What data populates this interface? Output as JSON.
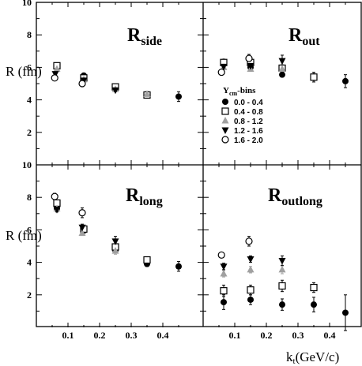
{
  "chart_data": {
    "type": "scatter",
    "x_axis_label": {
      "main": "k",
      "sub": "t",
      "rest": "(GeV/c)"
    },
    "y_axis_label": "R (fm)",
    "x_ticks": [
      0.1,
      0.2,
      0.3,
      0.4
    ],
    "x_tick_labels": [
      "0.1",
      "0.2",
      "0.3",
      "0.4"
    ],
    "y_ticks": [
      2,
      4,
      6,
      8,
      10
    ],
    "y_tick_labels": [
      "2",
      "4",
      "6",
      "8",
      "10"
    ],
    "xlim": [
      0,
      0.5
    ],
    "ylim": [
      0,
      10
    ],
    "legend": {
      "title": {
        "main": "Y",
        "sub": "cm",
        "rest": "-bins"
      },
      "placement": "top-right panel, lower left",
      "entries": [
        {
          "label": "0.0 - 0.4",
          "marker": "filled-circle"
        },
        {
          "label": "0.4 - 0.8",
          "marker": "open-square"
        },
        {
          "label": "0.8 - 1.2",
          "marker": "gray-triangle-up"
        },
        {
          "label": "1.2 - 1.6",
          "marker": "filled-triangle-down"
        },
        {
          "label": "1.6 - 2.0",
          "marker": "open-circle"
        }
      ]
    },
    "panels": [
      {
        "title": {
          "main": "R",
          "sub": "side"
        },
        "position": "top-left",
        "series": [
          {
            "points": [
              [
                0.065,
                6.1
              ],
              [
                0.15,
                5.5
              ],
              [
                0.25,
                4.7
              ],
              [
                0.35,
                4.35
              ],
              [
                0.45,
                4.2
              ]
            ],
            "yerr": [
              0.1,
              0.1,
              0.1,
              0.1,
              0.3
            ]
          },
          {
            "points": [
              [
                0.065,
                6.1
              ],
              [
                0.15,
                5.35
              ],
              [
                0.25,
                4.8
              ],
              [
                0.35,
                4.3
              ]
            ],
            "yerr": [
              0.1,
              0.1,
              0.1,
              0.1
            ]
          },
          {
            "points": [
              [
                0.065,
                5.9
              ],
              [
                0.15,
                5.25
              ],
              [
                0.25,
                4.65
              ],
              [
                0.35,
                4.35
              ]
            ],
            "yerr": [
              0.1,
              0.1,
              0.1,
              0.1
            ]
          },
          {
            "points": [
              [
                0.06,
                5.6
              ],
              [
                0.15,
                5.2
              ],
              [
                0.25,
                4.6
              ]
            ],
            "yerr": [
              0.1,
              0.1,
              0.1
            ]
          },
          {
            "points": [
              [
                0.058,
                5.35
              ],
              [
                0.145,
                5.0
              ]
            ],
            "yerr": [
              0.15,
              0.15
            ]
          }
        ]
      },
      {
        "title": {
          "main": "R",
          "sub": "out"
        },
        "position": "top-right",
        "series": [
          {
            "points": [
              [
                0.065,
                6.35
              ],
              [
                0.15,
                6.0
              ],
              [
                0.25,
                5.55
              ],
              [
                0.35,
                5.4
              ],
              [
                0.45,
                5.15
              ]
            ],
            "yerr": [
              0.1,
              0.1,
              0.1,
              0.2,
              0.4
            ]
          },
          {
            "points": [
              [
                0.065,
                6.3
              ],
              [
                0.15,
                6.3
              ],
              [
                0.25,
                5.95
              ],
              [
                0.35,
                5.4
              ]
            ],
            "yerr": [
              0.1,
              0.15,
              0.2,
              0.3
            ]
          },
          {
            "points": [
              [
                0.065,
                6.0
              ],
              [
                0.15,
                5.9
              ],
              [
                0.25,
                5.9
              ]
            ],
            "yerr": [
              0.1,
              0.15,
              0.2
            ]
          },
          {
            "points": [
              [
                0.065,
                6.05
              ],
              [
                0.15,
                6.1
              ],
              [
                0.25,
                6.4
              ]
            ],
            "yerr": [
              0.15,
              0.2,
              0.35
            ]
          },
          {
            "points": [
              [
                0.058,
                5.7
              ],
              [
                0.145,
                6.55
              ]
            ],
            "yerr": [
              0.15,
              0.25
            ]
          }
        ]
      },
      {
        "title": {
          "main": "R",
          "sub": "long"
        },
        "position": "bottom-left",
        "series": [
          {
            "points": [
              [
                0.065,
                7.3
              ],
              [
                0.15,
                5.95
              ],
              [
                0.25,
                4.75
              ],
              [
                0.35,
                3.9
              ],
              [
                0.45,
                3.75
              ]
            ],
            "yerr": [
              0.15,
              0.15,
              0.1,
              0.15,
              0.3
            ]
          },
          {
            "points": [
              [
                0.065,
                7.65
              ],
              [
                0.15,
                6.05
              ],
              [
                0.25,
                4.95
              ],
              [
                0.35,
                4.15
              ]
            ],
            "yerr": [
              0.15,
              0.15,
              0.15,
              0.15
            ]
          },
          {
            "points": [
              [
                0.065,
                7.3
              ],
              [
                0.145,
                5.8
              ],
              [
                0.25,
                4.7
              ]
            ],
            "yerr": [
              0.15,
              0.15,
              0.2
            ]
          },
          {
            "points": [
              [
                0.065,
                7.25
              ],
              [
                0.145,
                6.15
              ],
              [
                0.25,
                5.3
              ]
            ],
            "yerr": [
              0.15,
              0.2,
              0.3
            ]
          },
          {
            "points": [
              [
                0.058,
                8.05
              ],
              [
                0.145,
                7.05
              ]
            ],
            "yerr": [
              0.2,
              0.3
            ]
          }
        ]
      },
      {
        "title": {
          "main": "R",
          "sub": "outlong"
        },
        "position": "bottom-right",
        "series": [
          {
            "points": [
              [
                0.065,
                1.55
              ],
              [
                0.15,
                1.7
              ],
              [
                0.25,
                1.4
              ],
              [
                0.35,
                1.4
              ],
              [
                0.45,
                0.9
              ]
            ],
            "yerr": [
              0.45,
              0.3,
              0.35,
              0.45,
              1.1
            ]
          },
          {
            "points": [
              [
                0.065,
                2.25
              ],
              [
                0.15,
                2.3
              ],
              [
                0.25,
                2.55
              ],
              [
                0.35,
                2.45
              ]
            ],
            "yerr": [
              0.35,
              0.3,
              0.35,
              0.3
            ]
          },
          {
            "points": [
              [
                0.065,
                3.3
              ],
              [
                0.15,
                3.55
              ],
              [
                0.25,
                3.55
              ]
            ],
            "yerr": [
              0.2,
              0.2,
              0.25
            ]
          },
          {
            "points": [
              [
                0.065,
                3.75
              ],
              [
                0.15,
                4.2
              ],
              [
                0.25,
                4.1
              ]
            ],
            "yerr": [
              0.2,
              0.2,
              0.3
            ]
          },
          {
            "points": [
              [
                0.058,
                4.45
              ],
              [
                0.145,
                5.3
              ]
            ],
            "yerr": [
              0.15,
              0.3
            ]
          }
        ]
      }
    ]
  }
}
